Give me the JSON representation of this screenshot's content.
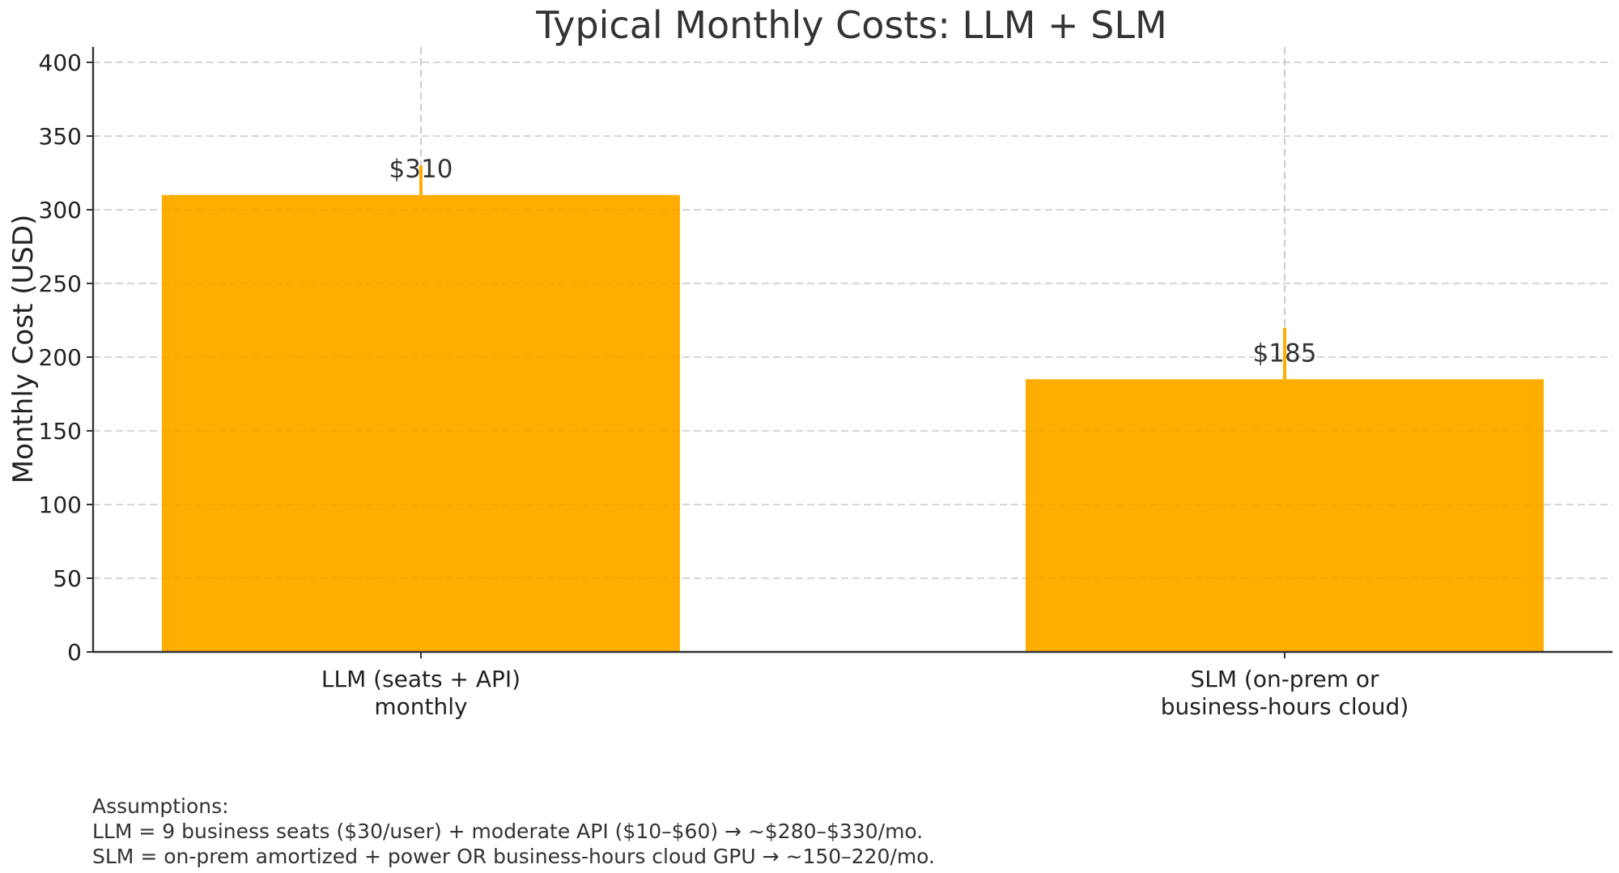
{
  "chart_data": {
    "type": "bar",
    "title": "Typical Monthly Costs: LLM + SLM",
    "xlabel": "",
    "ylabel": "Monthly Cost (USD)",
    "ylim": [
      0,
      410
    ],
    "yticks": [
      0,
      50,
      100,
      150,
      200,
      250,
      300,
      350,
      400
    ],
    "grid": true,
    "categories": [
      [
        "LLM (seats + API)",
        "monthly"
      ],
      [
        "SLM (on-prem or",
        "business-hours cloud)"
      ]
    ],
    "values": [
      310,
      185
    ],
    "error_ranges": [
      [
        310,
        330
      ],
      [
        185,
        220
      ]
    ],
    "data_labels": [
      "$310",
      "$185"
    ],
    "bar_color": "#FFAE00",
    "error_color": "#FFAE00"
  },
  "annotation": {
    "heading": "Assumptions:",
    "lines": [
      "LLM = 9 business seats ($30/user) + moderate API ($10–$60) → ~$280–$330/mo.",
      "SLM = on-prem amortized + power OR business-hours cloud GPU → ~150–220/mo."
    ]
  }
}
